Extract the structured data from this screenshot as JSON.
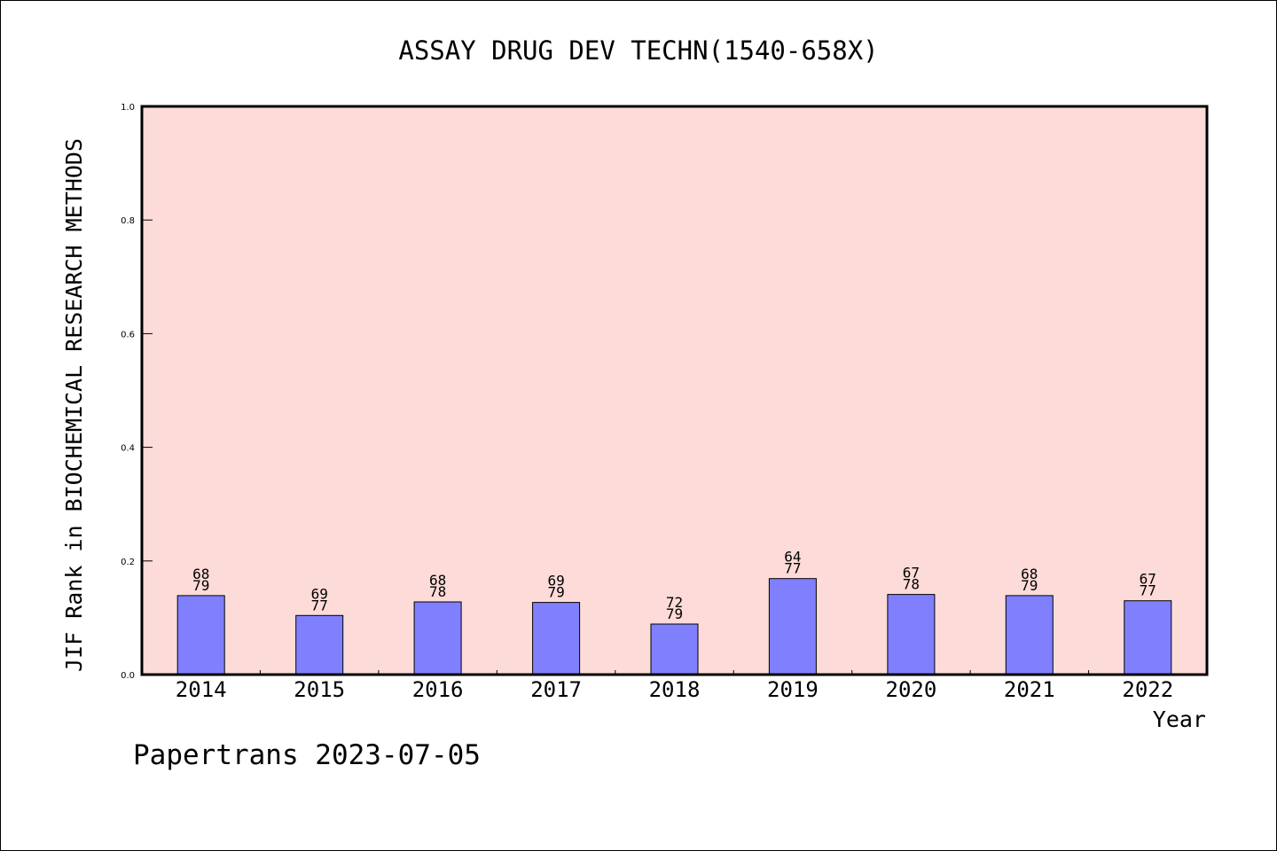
{
  "chart_data": {
    "type": "bar",
    "title": "ASSAY DRUG DEV TECHN(1540-658X)",
    "xlabel": "Year",
    "ylabel": "JIF Rank in BIOCHEMICAL RESEARCH METHODS",
    "categories": [
      "2014",
      "2015",
      "2016",
      "2017",
      "2018",
      "2019",
      "2020",
      "2021",
      "2022"
    ],
    "values": [
      0.139,
      0.104,
      0.128,
      0.127,
      0.089,
      0.169,
      0.141,
      0.139,
      0.13
    ],
    "bar_labels": [
      [
        "68",
        "79"
      ],
      [
        "69",
        "77"
      ],
      [
        "68",
        "78"
      ],
      [
        "69",
        "79"
      ],
      [
        "72",
        "79"
      ],
      [
        "64",
        "77"
      ],
      [
        "67",
        "78"
      ],
      [
        "68",
        "79"
      ],
      [
        "67",
        "77"
      ]
    ],
    "ylim": [
      0,
      1.0
    ],
    "yticks": [
      "0.0",
      "0.2",
      "0.4",
      "0.6",
      "0.8",
      "1.0"
    ],
    "grid": false,
    "colors": {
      "plot_background": "#fddbd8",
      "bar_fill": "#8080ff",
      "bar_stroke": "#000000"
    }
  },
  "footer": {
    "text": "Papertrans 2023-07-05"
  }
}
